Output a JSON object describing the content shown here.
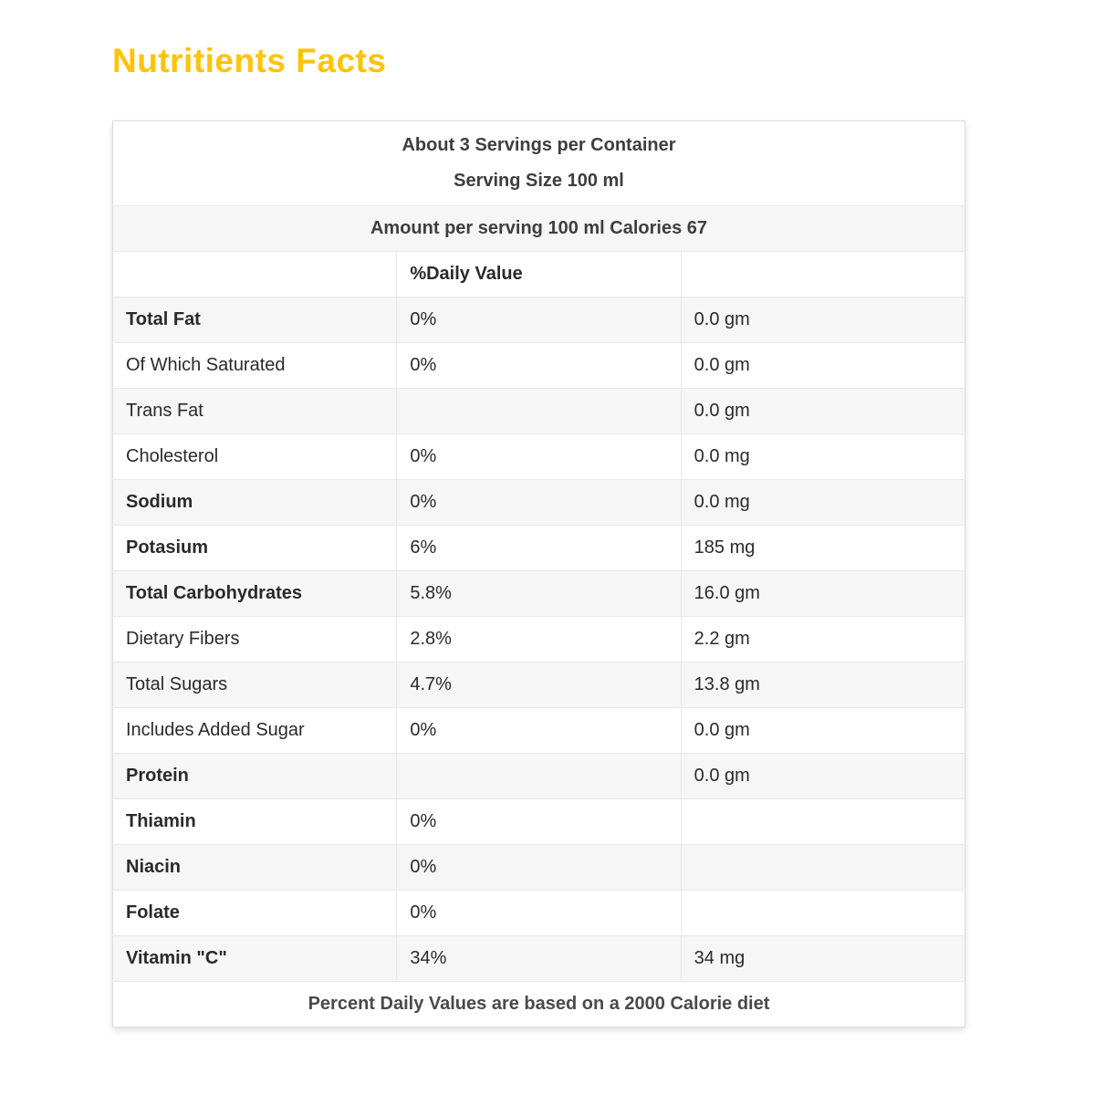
{
  "page_title": "Nutritients Facts",
  "colors": {
    "title_accent": "#ffc30b",
    "daily_value_accent": "#f94955",
    "stripe_bg": "#f6f6f6",
    "border": "#e9e9e9"
  },
  "table": {
    "header": {
      "servings_line": "About 3 Servings per Container",
      "serving_size_line": "Serving Size 100 ml",
      "amount_line": "Amount per serving 100 ml Calories 67",
      "daily_value_label": "%Daily Value"
    },
    "rows": [
      {
        "label": "Total Fat",
        "daily_value": "0%",
        "amount": "0.0 gm"
      },
      {
        "label": "Of Which Saturated",
        "daily_value": "0%",
        "amount": "0.0 gm"
      },
      {
        "label": "Trans Fat",
        "daily_value": "",
        "amount": "0.0 gm"
      },
      {
        "label": "Cholesterol",
        "daily_value": "0%",
        "amount": "0.0 mg"
      },
      {
        "label": "Sodium",
        "daily_value": "0%",
        "amount": "0.0 mg"
      },
      {
        "label": "Potasium",
        "daily_value": "6%",
        "amount": "185 mg"
      },
      {
        "label": "Total Carbohydrates",
        "daily_value": "5.8%",
        "amount": "16.0 gm"
      },
      {
        "label": "Dietary Fibers",
        "daily_value": "2.8%",
        "amount": "2.2 gm"
      },
      {
        "label": "Total Sugars",
        "daily_value": "4.7%",
        "amount": "13.8 gm"
      },
      {
        "label": "Includes Added Sugar",
        "daily_value": "0%",
        "amount": "0.0 gm"
      },
      {
        "label": "Protein",
        "daily_value": "",
        "amount": "0.0 gm"
      },
      {
        "label": "Thiamin",
        "daily_value": "0%",
        "amount": ""
      },
      {
        "label": "Niacin",
        "daily_value": "0%",
        "amount": ""
      },
      {
        "label": "Folate",
        "daily_value": "0%",
        "amount": ""
      },
      {
        "label": "Vitamin \"C\"",
        "daily_value": "34%",
        "amount": "34 mg"
      }
    ],
    "footer": "Percent Daily Values are based on a 2000 Calorie diet"
  }
}
